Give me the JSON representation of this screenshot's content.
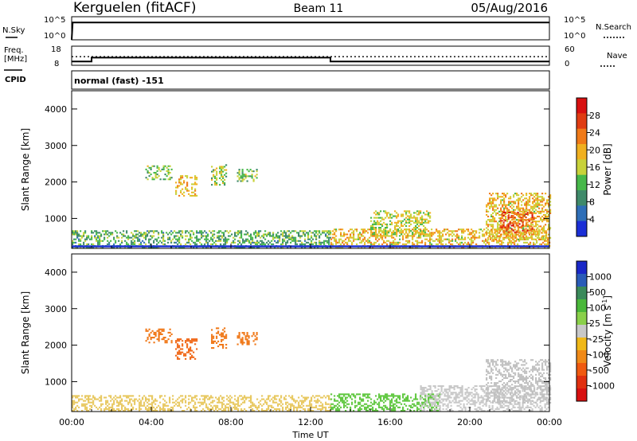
{
  "header": {
    "station": "Kerguelen (fitACF)",
    "beam": "Beam 11",
    "date": "05/Aug/2016"
  },
  "noise_panel": {
    "left_label": "N.Sky",
    "right_label": "N.Search",
    "left_ticks": [
      "10^5",
      "10^0"
    ],
    "right_ticks": [
      "10^5",
      "10^0"
    ]
  },
  "freq_panel": {
    "left_label_line1": "Freq.",
    "left_label_line2": "[MHz]",
    "left_ticks": [
      "18",
      "8"
    ],
    "right_ticks": [
      "60",
      "0"
    ],
    "right_label": "Nave"
  },
  "cpid_panel": {
    "label": "CPID",
    "text": "normal (fast) -151"
  },
  "time_axis": {
    "label": "Time UT",
    "ticks": [
      "00:00",
      "04:00",
      "08:00",
      "12:00",
      "16:00",
      "20:00",
      "00:00"
    ]
  },
  "chart_data": [
    {
      "type": "line",
      "title": "N.Sky / N.Search",
      "x_hours": [
        0,
        0.05,
        24
      ],
      "y_relative": [
        0,
        0.75,
        0.75
      ],
      "xlim": [
        0,
        24
      ]
    },
    {
      "type": "line",
      "title": "Freq. [MHz] / Nave",
      "x_hours": [
        0,
        1,
        13,
        24
      ],
      "freq_mhz": [
        10,
        12,
        10,
        10
      ],
      "nave_dotted_level": 12.5,
      "ylim": [
        8,
        18
      ],
      "xlim": [
        0,
        24
      ]
    },
    {
      "type": "heatmap",
      "title": "Power [dB]",
      "ylabel": "Slant Range [km]",
      "xlabel": "Time UT",
      "xlim": [
        0,
        24
      ],
      "ylim": [
        180,
        4500
      ],
      "y_ticks": [
        1000,
        2000,
        3000,
        4000
      ],
      "colorbar": {
        "label": "Power [dB]",
        "ticks": [
          "4",
          "8",
          "12",
          "16",
          "20",
          "24",
          "28"
        ],
        "colors": [
          "#1b2fd6",
          "#2f6fb8",
          "#3f8a6a",
          "#47b84a",
          "#c8d23a",
          "#f0b020",
          "#f07a18",
          "#e03c12",
          "#d81010"
        ]
      },
      "echo_regions": [
        {
          "t0": 3.7,
          "t1": 5.0,
          "r0": 2050,
          "r1": 2450,
          "level": 0.4
        },
        {
          "t0": 5.2,
          "t1": 6.3,
          "r0": 1600,
          "r1": 2150,
          "level": 0.6
        },
        {
          "t0": 7.0,
          "t1": 7.8,
          "r0": 1900,
          "r1": 2450,
          "level": 0.45
        },
        {
          "t0": 8.3,
          "t1": 9.3,
          "r0": 2000,
          "r1": 2350,
          "level": 0.4
        },
        {
          "t0": 0.0,
          "t1": 13.0,
          "r0": 180,
          "r1": 650,
          "level": 0.35
        },
        {
          "t0": 13.0,
          "t1": 24.0,
          "r0": 180,
          "r1": 700,
          "level": 0.6
        },
        {
          "t0": 15.0,
          "t1": 18.0,
          "r0": 500,
          "r1": 1200,
          "level": 0.5
        },
        {
          "t0": 20.8,
          "t1": 24.0,
          "r0": 400,
          "r1": 1700,
          "level": 0.6
        },
        {
          "t0": 21.5,
          "t1": 23.2,
          "r0": 600,
          "r1": 1150,
          "level": 0.85
        }
      ]
    },
    {
      "type": "heatmap",
      "title": "Velocity [m s^-1]",
      "ylabel": "Slant Range [km]",
      "xlabel": "Time UT",
      "xlim": [
        0,
        24
      ],
      "ylim": [
        180,
        4500
      ],
      "y_ticks": [
        1000,
        2000,
        3000,
        4000
      ],
      "colorbar": {
        "label": "Velocity [m s",
        "label_sup": "-1",
        "label_end": "]",
        "ticks": [
          "1000",
          "500",
          "100",
          "25",
          "-25",
          "-100",
          "-500",
          "-1000"
        ],
        "colors": [
          "#1a28c8",
          "#2a5cb8",
          "#3a8a5a",
          "#4ab83a",
          "#8ad04a",
          "#c8c8c8",
          "#f0b818",
          "#f08a18",
          "#f05a10",
          "#e03010",
          "#d81010"
        ]
      },
      "echo_regions": [
        {
          "t0": 3.7,
          "t1": 5.0,
          "r0": 2050,
          "r1": 2450,
          "color": "#f07818"
        },
        {
          "t0": 5.2,
          "t1": 6.3,
          "r0": 1600,
          "r1": 2150,
          "color": "#f06818"
        },
        {
          "t0": 7.0,
          "t1": 7.8,
          "r0": 1900,
          "r1": 2450,
          "color": "#f07818"
        },
        {
          "t0": 8.3,
          "t1": 9.3,
          "r0": 2000,
          "r1": 2350,
          "color": "#f07818"
        },
        {
          "t0": 0.0,
          "t1": 13.0,
          "r0": 180,
          "r1": 600,
          "color": "#e8c860"
        },
        {
          "t0": 13.0,
          "t1": 18.5,
          "r0": 180,
          "r1": 650,
          "color": "#60c840"
        },
        {
          "t0": 17.5,
          "t1": 24.0,
          "r0": 180,
          "r1": 900,
          "color": "#c8c8c8"
        },
        {
          "t0": 20.8,
          "t1": 24.0,
          "r0": 400,
          "r1": 1600,
          "color": "#c0c0c0"
        }
      ]
    }
  ]
}
